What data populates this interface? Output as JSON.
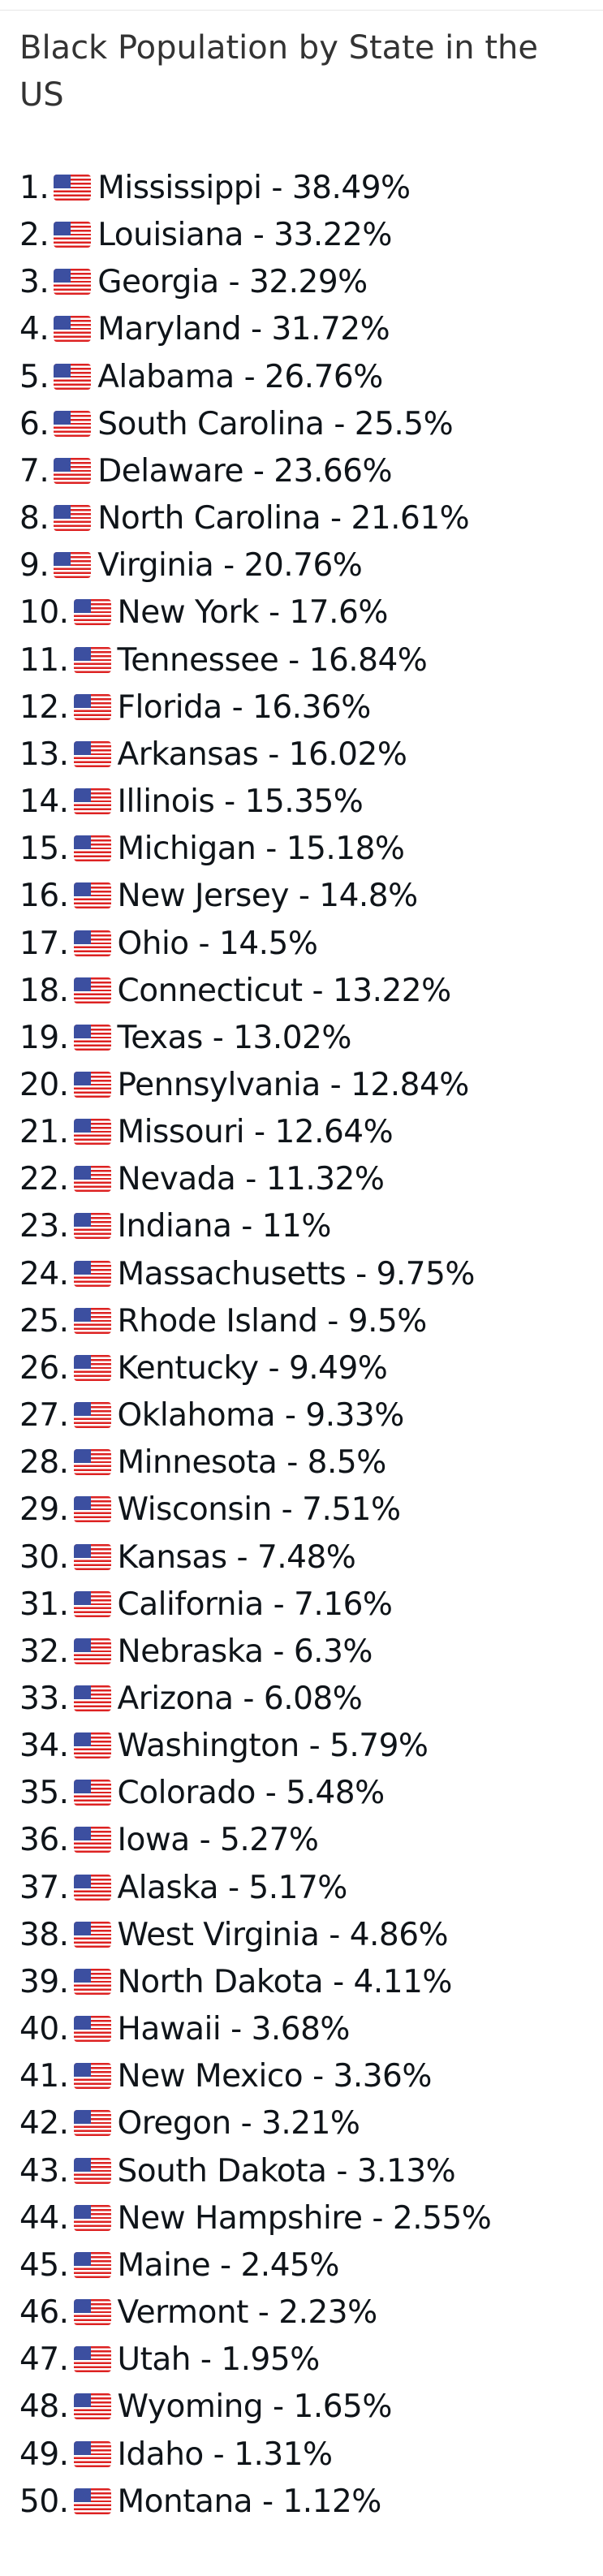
{
  "title": "Black Population by State in the US",
  "items": [
    {
      "rank": "1.",
      "text": "Mississippi - 38.49%"
    },
    {
      "rank": "2.",
      "text": "Louisiana - 33.22%"
    },
    {
      "rank": "3.",
      "text": "Georgia - 32.29%"
    },
    {
      "rank": "4.",
      "text": "Maryland - 31.72%"
    },
    {
      "rank": "5.",
      "text": "Alabama - 26.76%"
    },
    {
      "rank": "6.",
      "text": "South Carolina - 25.5%"
    },
    {
      "rank": "7.",
      "text": "Delaware - 23.66%"
    },
    {
      "rank": "8.",
      "text": "North Carolina - 21.61%"
    },
    {
      "rank": "9.",
      "text": "Virginia - 20.76%"
    },
    {
      "rank": "10.",
      "text": "New York - 17.6%"
    },
    {
      "rank": "11.",
      "text": "Tennessee - 16.84%"
    },
    {
      "rank": "12.",
      "text": "Florida - 16.36%"
    },
    {
      "rank": "13.",
      "text": "Arkansas - 16.02%"
    },
    {
      "rank": "14.",
      "text": "Illinois - 15.35%"
    },
    {
      "rank": "15.",
      "text": "Michigan - 15.18%"
    },
    {
      "rank": "16.",
      "text": "New Jersey - 14.8%"
    },
    {
      "rank": "17.",
      "text": "Ohio - 14.5%"
    },
    {
      "rank": "18.",
      "text": "Connecticut - 13.22%"
    },
    {
      "rank": "19.",
      "text": "Texas - 13.02%"
    },
    {
      "rank": "20.",
      "text": "Pennsylvania - 12.84%"
    },
    {
      "rank": "21.",
      "text": "Missouri - 12.64%"
    },
    {
      "rank": "22.",
      "text": "Nevada - 11.32%"
    },
    {
      "rank": "23.",
      "text": "Indiana - 11%"
    },
    {
      "rank": "24.",
      "text": "Massachusetts - 9.75%"
    },
    {
      "rank": "25.",
      "text": "Rhode Island - 9.5%"
    },
    {
      "rank": "26.",
      "text": "Kentucky - 9.49%"
    },
    {
      "rank": "27.",
      "text": "Oklahoma - 9.33%"
    },
    {
      "rank": "28.",
      "text": "Minnesota - 8.5%"
    },
    {
      "rank": "29.",
      "text": "Wisconsin - 7.51%"
    },
    {
      "rank": "30.",
      "text": "Kansas - 7.48%"
    },
    {
      "rank": "31.",
      "text": "California - 7.16%"
    },
    {
      "rank": "32.",
      "text": "Nebraska - 6.3%"
    },
    {
      "rank": "33.",
      "text": "Arizona - 6.08%"
    },
    {
      "rank": "34.",
      "text": "Washington - 5.79%"
    },
    {
      "rank": "35.",
      "text": "Colorado - 5.48%"
    },
    {
      "rank": "36.",
      "text": "Iowa - 5.27%"
    },
    {
      "rank": "37.",
      "text": "Alaska - 5.17%"
    },
    {
      "rank": "38.",
      "text": "West Virginia - 4.86%"
    },
    {
      "rank": "39.",
      "text": "North Dakota - 4.11%"
    },
    {
      "rank": "40.",
      "text": "Hawaii - 3.68%"
    },
    {
      "rank": "41.",
      "text": "New Mexico - 3.36%"
    },
    {
      "rank": "42.",
      "text": "Oregon - 3.21%"
    },
    {
      "rank": "43.",
      "text": "South Dakota - 3.13%"
    },
    {
      "rank": "44.",
      "text": "New Hampshire - 2.55%"
    },
    {
      "rank": "45.",
      "text": "Maine - 2.45%"
    },
    {
      "rank": "46.",
      "text": "Vermont - 2.23%"
    },
    {
      "rank": "47.",
      "text": "Utah - 1.95%"
    },
    {
      "rank": "48.",
      "text": "Wyoming - 1.65%"
    },
    {
      "rank": "49.",
      "text": "Idaho - 1.31%"
    },
    {
      "rank": "50.",
      "text": "Montana - 1.12%"
    }
  ]
}
